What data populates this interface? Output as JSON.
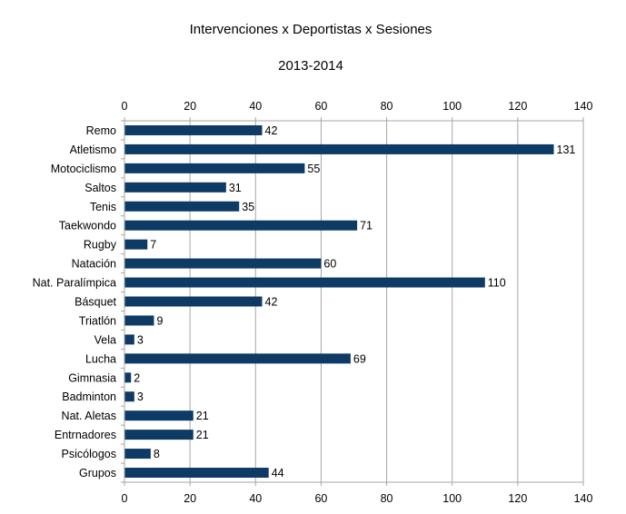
{
  "chart_data": {
    "type": "bar",
    "orientation": "horizontal",
    "title": "Intervenciones x Deportistas x Sesiones",
    "subtitle": "2013-2014",
    "categories": [
      "Remo",
      "Atletismo",
      "Motociclismo",
      "Saltos",
      "Tenis",
      "Taekwondo",
      "Rugby",
      "Natación",
      "Nat. Paralímpica",
      "Básquet",
      "Triatlón",
      "Vela",
      "Lucha",
      "Gimnasia",
      "Badminton",
      "Nat. Aletas",
      "Entrnadores",
      "Psicólogos",
      "Grupos"
    ],
    "values": [
      42,
      131,
      55,
      31,
      35,
      71,
      7,
      60,
      110,
      42,
      9,
      3,
      69,
      2,
      3,
      21,
      21,
      8,
      44
    ],
    "xlim": [
      0,
      140
    ],
    "xticks": [
      0,
      20,
      40,
      60,
      80,
      100,
      120,
      140
    ],
    "grid": true,
    "bar_color": "#0e3a66",
    "grid_color": "#a6a6a6"
  }
}
